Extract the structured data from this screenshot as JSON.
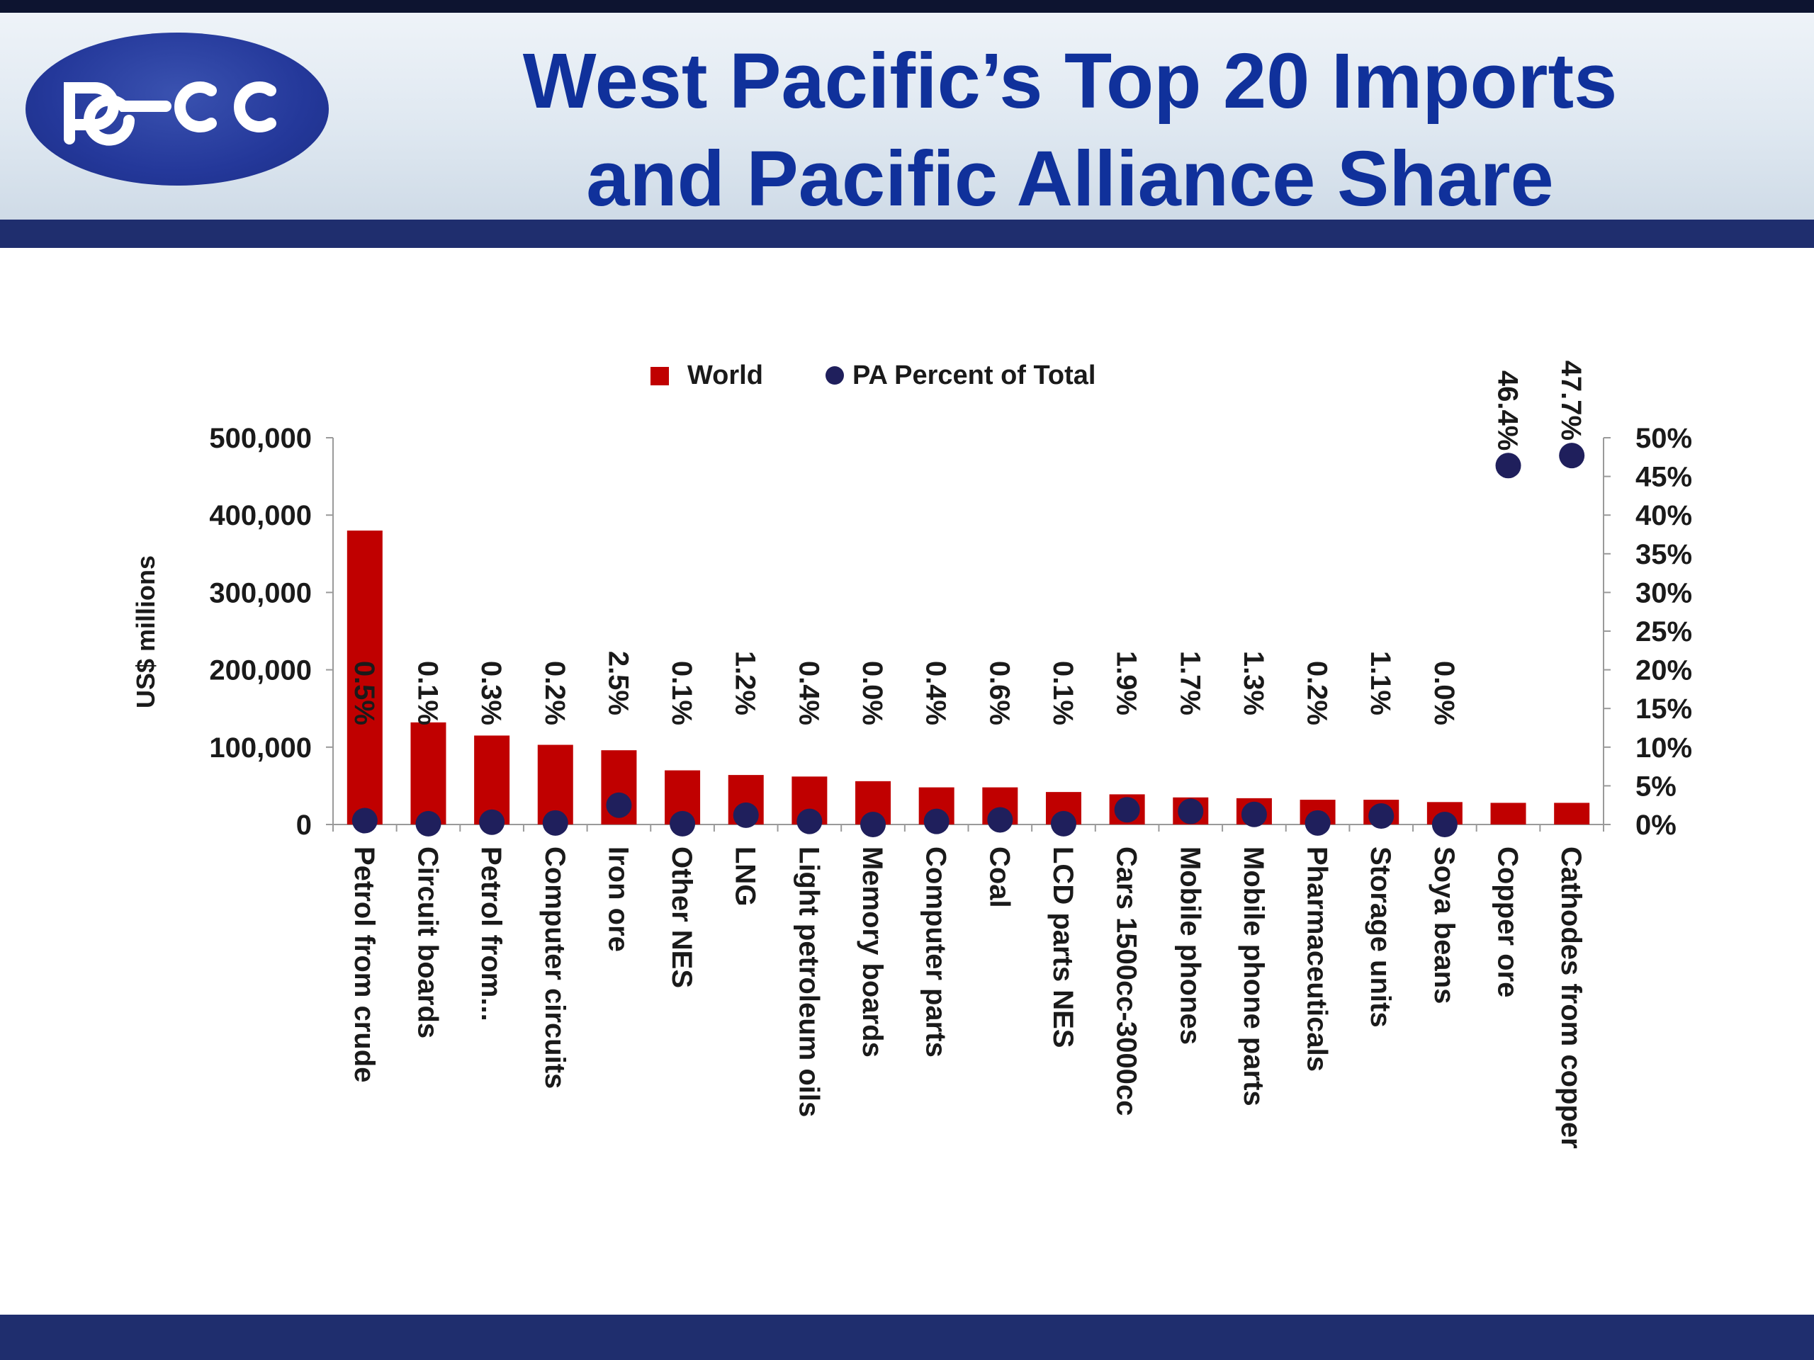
{
  "slide": {
    "logo_text": "pecc",
    "title_line1": "West Pacific’s Top 20 Imports",
    "title_line2": "and Pacific Alliance Share"
  },
  "colors": {
    "header_band": "#1f2e6e",
    "title": "#10319b",
    "bar": "#c00000",
    "dot": "#1f1f5c"
  },
  "chart_data": {
    "type": "bar",
    "title": "",
    "categories": [
      "Petrol from crude",
      "Circuit boards",
      "Petrol from...",
      "Computer circuits",
      "Iron ore",
      "Other NES",
      "LNG",
      "Light petroleum oils",
      "Memory boards",
      "Computer parts",
      "Coal",
      "LCD parts NES",
      "Cars 1500cc-3000cc",
      "Mobile phones",
      "Mobile phone parts",
      "Pharmaceuticals",
      "Storage units",
      "Soya beans",
      "Copper ore",
      "Cathodes from copper"
    ],
    "series": [
      {
        "name": "World",
        "type": "bar",
        "axis": "left",
        "values": [
          380000,
          132000,
          115000,
          103000,
          96000,
          70000,
          64000,
          62000,
          56000,
          48000,
          48000,
          42000,
          39000,
          35000,
          34000,
          32000,
          32000,
          29000,
          28000,
          28000
        ]
      },
      {
        "name": "PA Percent of Total",
        "type": "scatter",
        "axis": "right",
        "values": [
          0.5,
          0.1,
          0.3,
          0.2,
          2.5,
          0.1,
          1.2,
          0.4,
          0.0,
          0.4,
          0.6,
          0.1,
          1.9,
          1.7,
          1.3,
          0.2,
          1.1,
          0.0,
          46.4,
          47.7
        ],
        "labels": [
          "0.5%",
          "0.1%",
          "0.3%",
          "0.2%",
          "2.5%",
          "0.1%",
          "1.2%",
          "0.4%",
          "0.0%",
          "0.4%",
          "0.6%",
          "0.1%",
          "1.9%",
          "1.7%",
          "1.3%",
          "0.2%",
          "1.1%",
          "0.0%",
          "46.4%",
          "47.7%"
        ]
      }
    ],
    "ylabel": "US$ millions",
    "xlabel": "",
    "ylim": [
      0,
      500000
    ],
    "y_ticks": [
      "0",
      "100,000",
      "200,000",
      "300,000",
      "400,000",
      "500,000"
    ],
    "y2lim": [
      0,
      50
    ],
    "y2_ticks": [
      "0%",
      "5%",
      "10%",
      "15%",
      "20%",
      "25%",
      "30%",
      "35%",
      "40%",
      "45%",
      "50%"
    ],
    "grid": false,
    "legend": "top"
  }
}
